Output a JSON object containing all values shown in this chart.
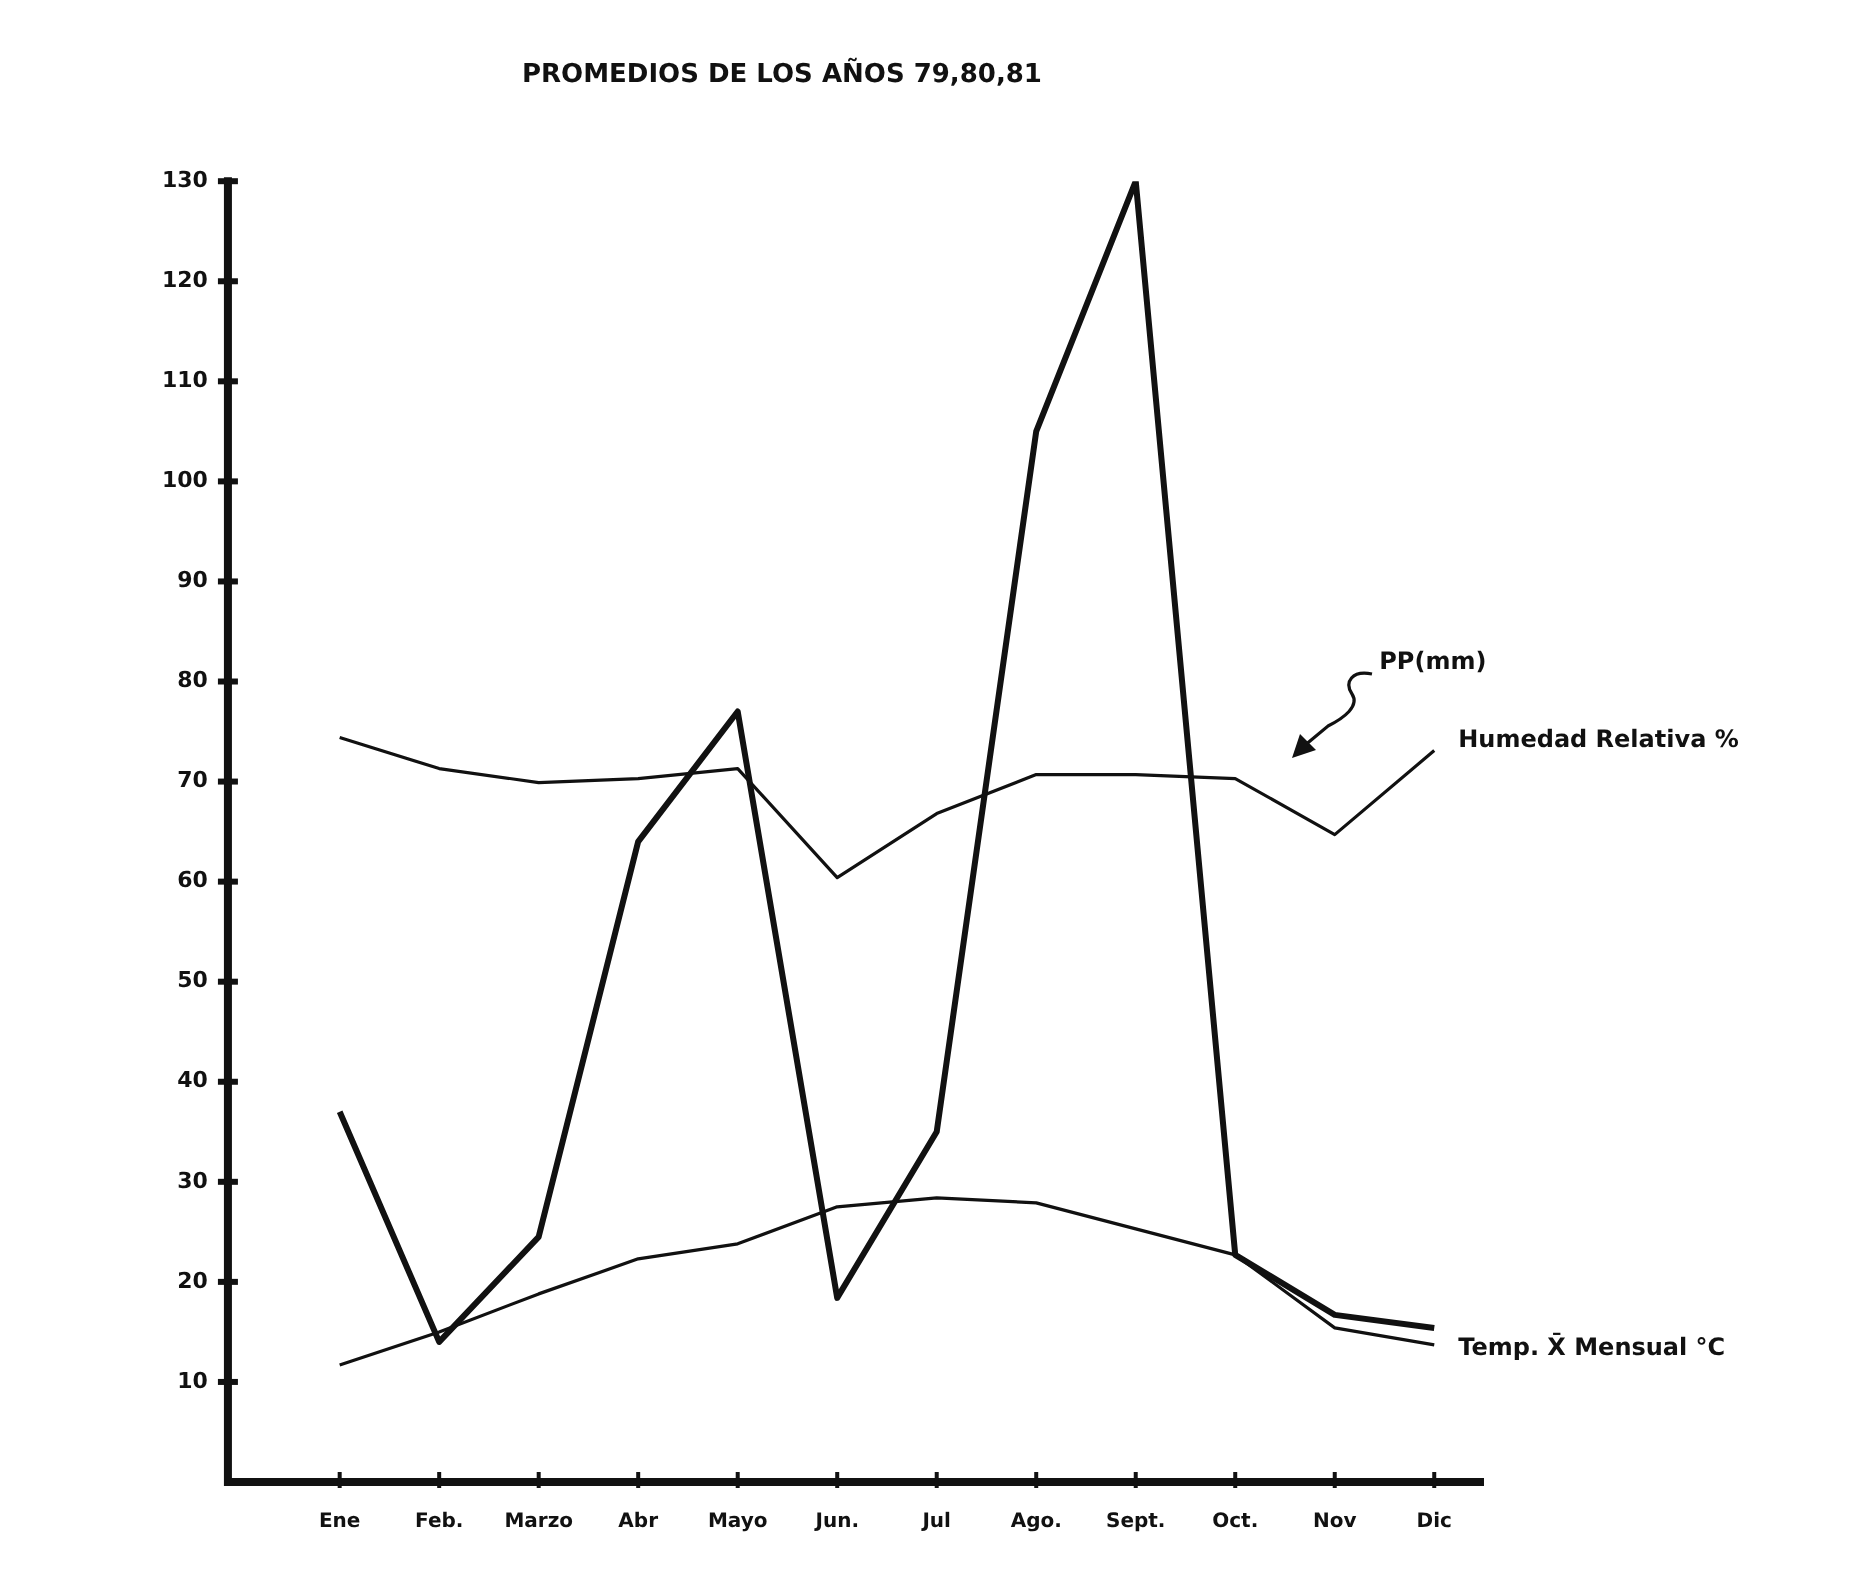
{
  "chart_data": {
    "type": "line",
    "title": "PROMEDIOS DE LOS AÑOS 79,80,81",
    "categories": [
      "Ene",
      "Feb.",
      "Marzo",
      "Abr",
      "Mayo",
      "Jun.",
      "Jul",
      "Ago.",
      "Sept.",
      "Oct.",
      "Nov",
      "Dic"
    ],
    "series": [
      {
        "color": "#111111",
        "values": [
          37,
          14,
          24.5,
          64,
          77,
          18.4,
          35,
          105,
          130,
          22.7,
          16.7,
          15.4
        ]
      },
      {
        "name": "Humedad Relativa %",
        "color": "#111111",
        "values": [
          74.4,
          71.3,
          69.9,
          70.3,
          71.3,
          60.4,
          66.8,
          70.7,
          70.7,
          70.3,
          64.7,
          73.1
        ]
      },
      {
        "name": "Temp. X̄ Mensual °C",
        "color": "#111111",
        "values": [
          11.7,
          15,
          18.8,
          22.3,
          23.8,
          27.5,
          28.4,
          27.9,
          25.3,
          22.7,
          15.4,
          13.7
        ]
      }
    ],
    "ylim": [
      0,
      130
    ],
    "yticks": [
      10,
      20,
      30,
      40,
      50,
      60,
      70,
      80,
      90,
      100,
      110,
      120,
      130
    ],
    "grid": false,
    "legend": false,
    "marker": "none",
    "line_style": "solid",
    "annotations": [
      "PP(mm)"
    ]
  }
}
